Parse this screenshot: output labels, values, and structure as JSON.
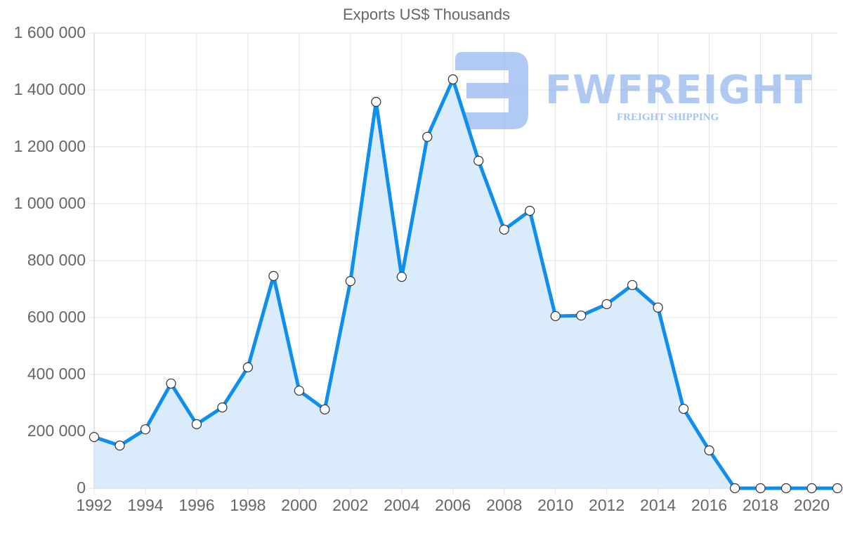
{
  "chart_data": {
    "type": "area",
    "title": "Exports US$ Thousands",
    "xlabel": "",
    "ylabel": "",
    "x": [
      1992,
      1993,
      1994,
      1995,
      1996,
      1997,
      1998,
      1999,
      2000,
      2001,
      2002,
      2003,
      2004,
      2005,
      2006,
      2007,
      2008,
      2009,
      2010,
      2011,
      2012,
      2013,
      2014,
      2015,
      2016,
      2017,
      2018,
      2019,
      2020,
      2021
    ],
    "series": [
      {
        "name": "Exports US$ Thousands",
        "values": [
          180000,
          150000,
          207000,
          368000,
          225000,
          284000,
          425000,
          746000,
          343000,
          277000,
          728000,
          1358000,
          743000,
          1235000,
          1437000,
          1151000,
          909000,
          975000,
          605000,
          607000,
          647000,
          714000,
          635000,
          279000,
          133000,
          0,
          0,
          0,
          0,
          0
        ],
        "line_color": "#0e8ff0",
        "fill_color": "#d8ebfc"
      }
    ],
    "ylim": [
      0,
      1600000
    ],
    "xlim": [
      1992,
      2021
    ],
    "y_ticks": [
      "0",
      "200 000",
      "400 000",
      "600 000",
      "800 000",
      "1 000 000",
      "1 200 000",
      "1 400 000",
      "1 600 000"
    ],
    "x_ticks": [
      "1992",
      "1994",
      "1996",
      "1998",
      "2000",
      "2002",
      "2004",
      "2006",
      "2008",
      "2010",
      "2012",
      "2014",
      "2016",
      "2018",
      "2020"
    ],
    "grid": true,
    "legend": "none"
  },
  "watermark": {
    "brand": "FWFREIGHT",
    "tagline": "FREIGHT SHIPPING",
    "color": "#8fb3ee"
  }
}
